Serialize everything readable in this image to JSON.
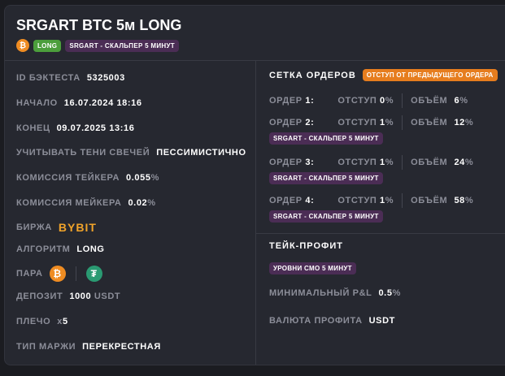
{
  "title": "SRGART BTC 5м LONG",
  "badges": {
    "coin_icon": "bitcoin-icon",
    "direction": "LONG",
    "strategy": "SRGART - СКАЛЬПЕР 5 МИНУТ"
  },
  "colors": {
    "long": "#4c9e3c",
    "strategy": "#4b2d55",
    "offset": "#e67d1e",
    "bitcoin": "#ef8c22",
    "tether": "#2a9a72",
    "bybit": "#f0a32a"
  },
  "left": {
    "id": {
      "label": "ID БЭКТЕСТА",
      "value": "5325003"
    },
    "start": {
      "label": "НАЧАЛО",
      "value": "16.07.2024 18:16"
    },
    "end": {
      "label": "КОНЕЦ",
      "value": "09.07.2025 13:16"
    },
    "shadows": {
      "label": "УЧИТЫВАТЬ ТЕНИ СВЕЧЕЙ",
      "value": "ПЕССИМИСТИЧНО"
    },
    "taker": {
      "label": "КОМИССИЯ ТЕЙКЕРА",
      "value": "0.055",
      "unit": "%"
    },
    "maker": {
      "label": "КОМИССИЯ МЕЙКЕРА",
      "value": "0.02",
      "unit": "%"
    },
    "exchange": {
      "label": "БИРЖА",
      "value": "BYBIT"
    },
    "algo": {
      "label": "АЛГОРИТМ",
      "value": "LONG"
    },
    "pair": {
      "label": "ПАРА",
      "base_icon": "bitcoin-icon",
      "quote_icon": "tether-icon"
    },
    "deposit": {
      "label": "ДЕПОЗИТ",
      "value": "1000",
      "unit": "USDT"
    },
    "leverage": {
      "label": "ПЛЕЧО",
      "prefix": "x",
      "value": "5"
    },
    "margin": {
      "label": "ТИП МАРЖИ",
      "value": "ПЕРЕКРЕСТНАЯ"
    }
  },
  "grid": {
    "title": "СЕТКА ОРДЕРОВ",
    "badge": "ОТСТУП ОТ ПРЕДЫДУЩЕГО ОРДЕРА",
    "orders": [
      {
        "label": "ОРДЕР",
        "num": "1:",
        "offset_label": "ОТСТУП",
        "offset": "0",
        "volume_label": "ОБЪЁМ",
        "volume": "6",
        "tag": ""
      },
      {
        "label": "ОРДЕР",
        "num": "2:",
        "offset_label": "ОТСТУП",
        "offset": "1",
        "volume_label": "ОБЪЁМ",
        "volume": "12",
        "tag": "SRGART - СКАЛЬПЕР 5 МИНУТ"
      },
      {
        "label": "ОРДЕР",
        "num": "3:",
        "offset_label": "ОТСТУП",
        "offset": "1",
        "volume_label": "ОБЪЁМ",
        "volume": "24",
        "tag": "SRGART - СКАЛЬПЕР 5 МИНУТ"
      },
      {
        "label": "ОРДЕР",
        "num": "4:",
        "offset_label": "ОТСТУП",
        "offset": "1",
        "volume_label": "ОБЪЁМ",
        "volume": "58",
        "tag": "SRGART - СКАЛЬПЕР 5 МИНУТ"
      }
    ],
    "unit": "%"
  },
  "tp": {
    "title": "ТЕЙК-ПРОФИТ",
    "badge": "УРОВНИ СМО 5 МИНУТ",
    "pnl": {
      "label": "МИНИМАЛЬНЫЙ P&L",
      "value": "0.5",
      "unit": "%"
    },
    "currency": {
      "label": "ВАЛЮТА ПРОФИТА",
      "value": "USDT"
    }
  }
}
